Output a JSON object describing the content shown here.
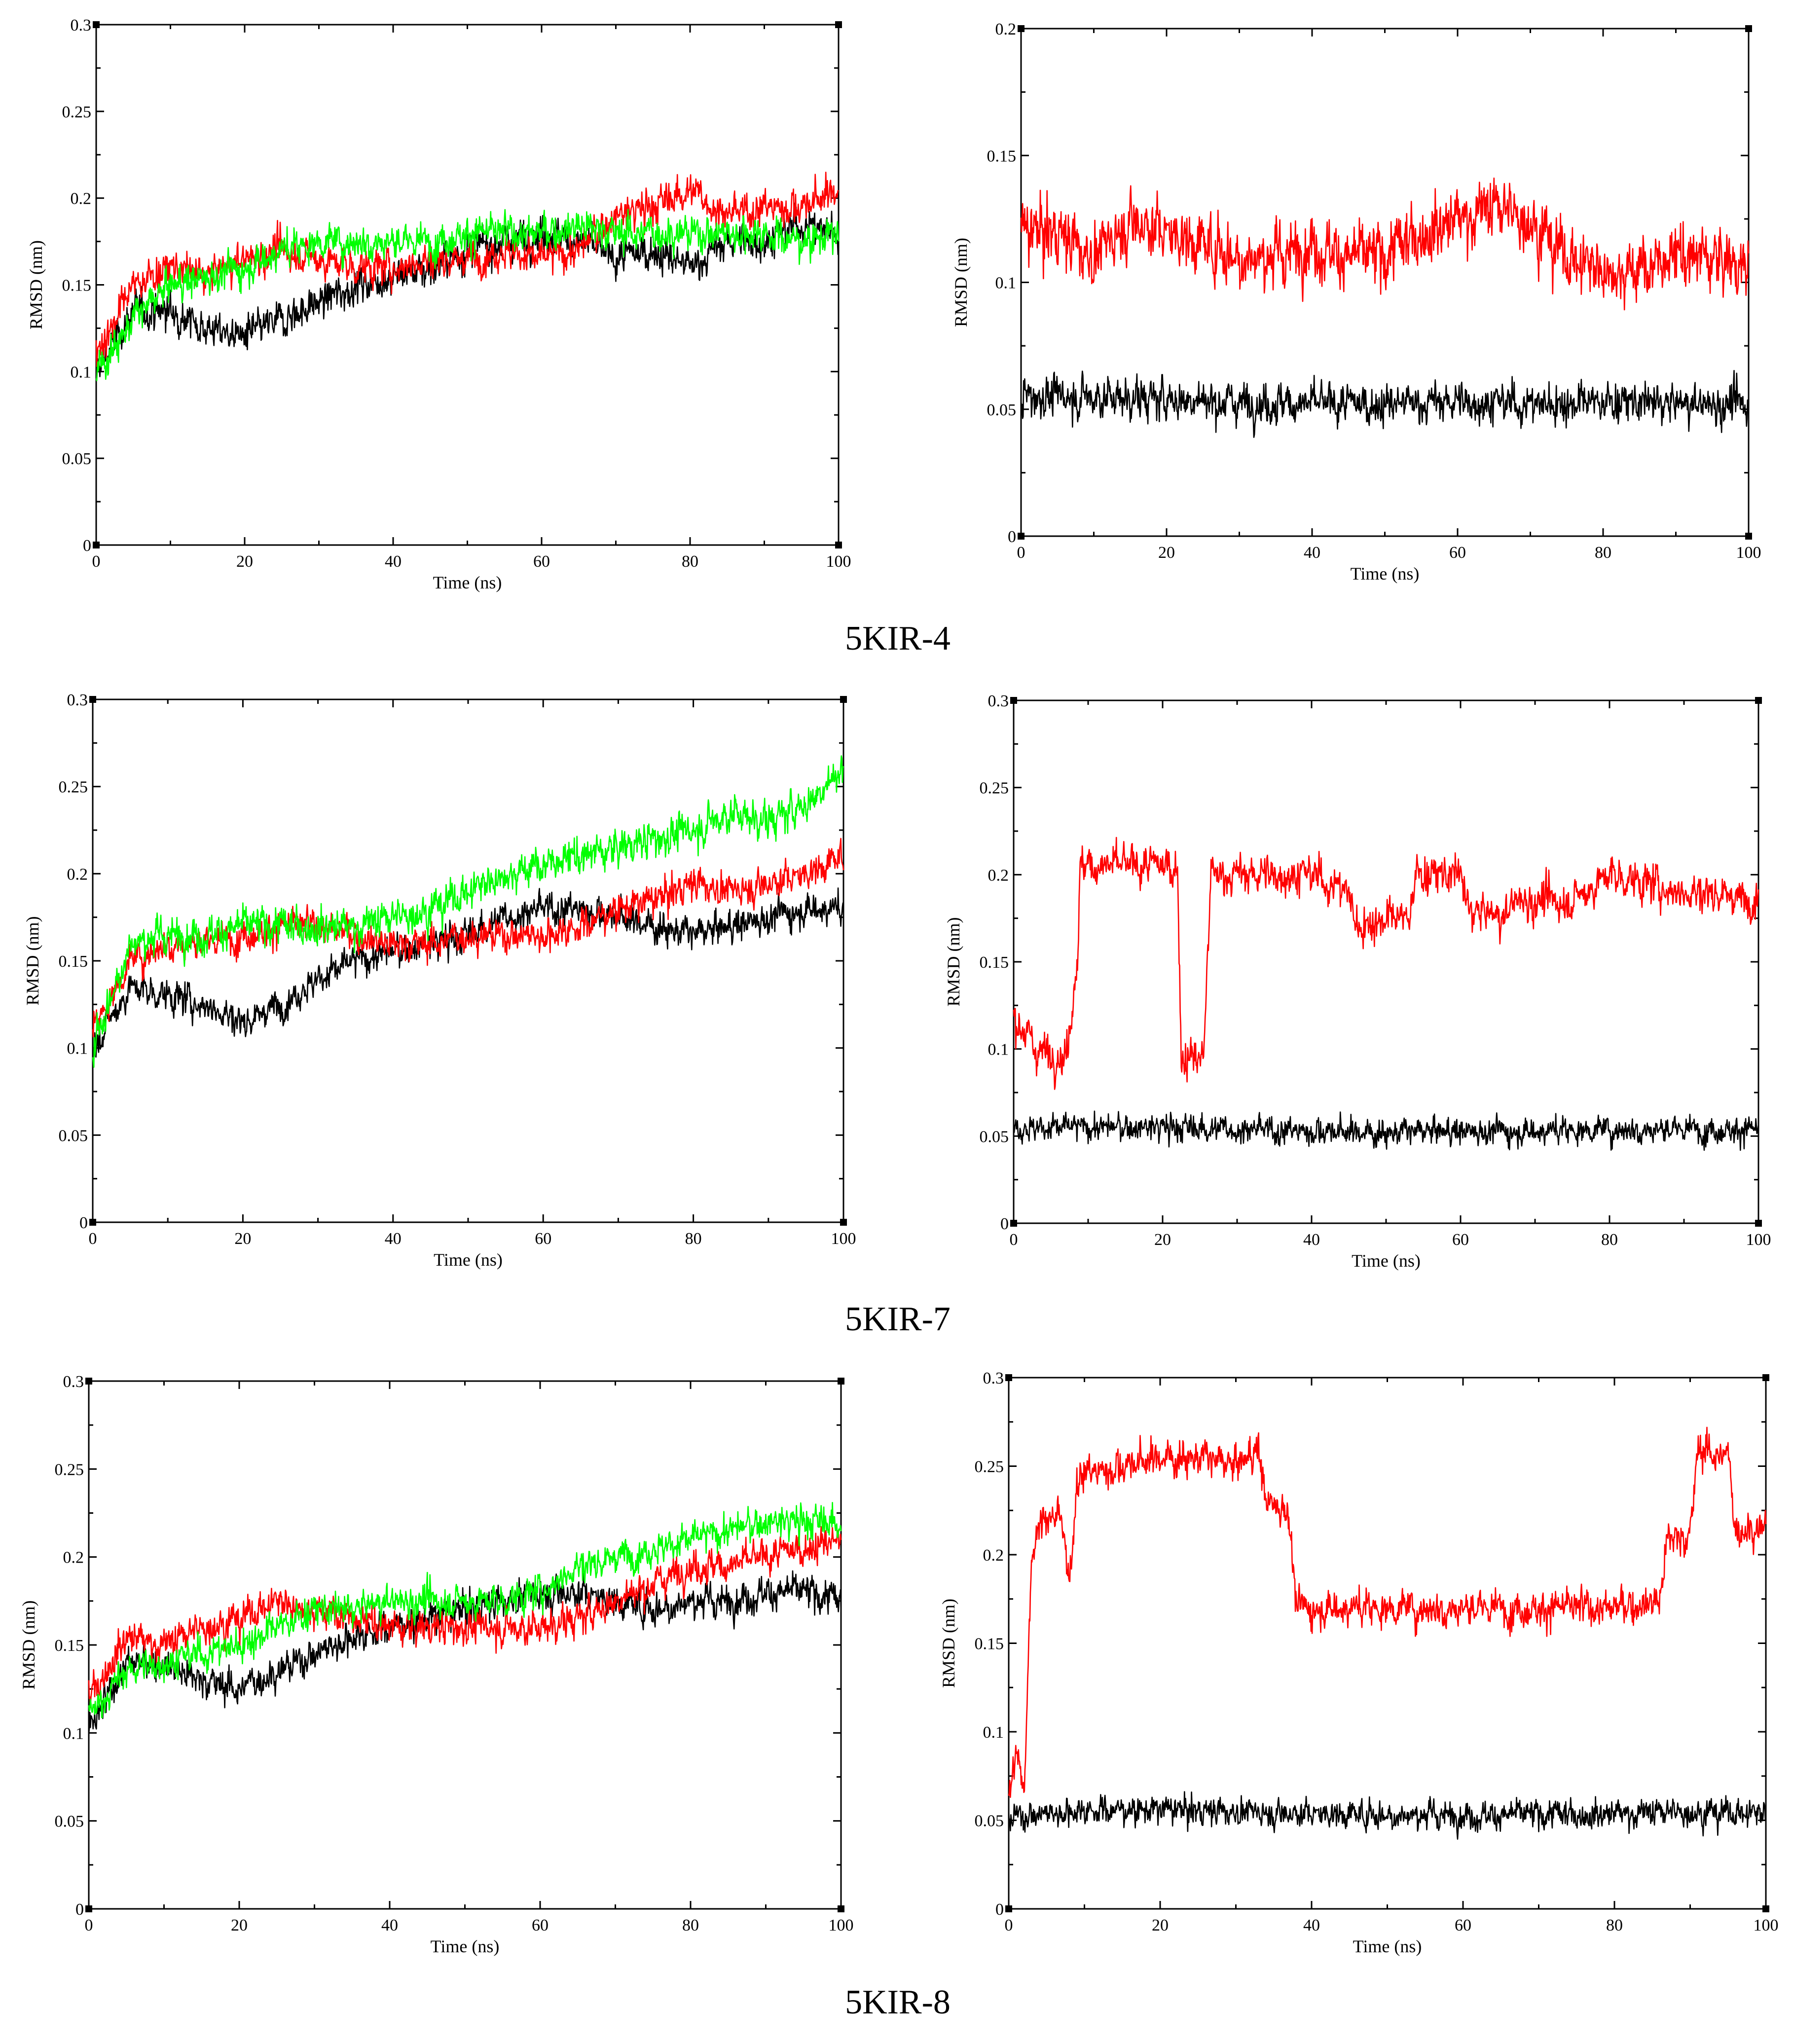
{
  "colors": {
    "black": "#000000",
    "red": "#ff0000",
    "green": "#00ff00"
  },
  "captions": [
    "5KIR-4",
    "5KIR-7",
    "5KIR-8"
  ],
  "chart_data": [
    {
      "type": "line",
      "group": "5KIR-4",
      "position": "left",
      "xlabel": "Time (ns)",
      "ylabel": "RMSD (nm)",
      "xlim": [
        0,
        100
      ],
      "ylim": [
        0,
        0.3
      ],
      "xticks": [
        0,
        20,
        40,
        60,
        80,
        100
      ],
      "yticks": [
        0,
        0.05,
        0.1,
        0.15,
        0.2,
        0.25,
        0.3
      ],
      "series": [
        {
          "name": "black",
          "color": "#000000",
          "x": [
            0,
            5,
            10,
            15,
            20,
            25,
            30,
            35,
            40,
            45,
            50,
            55,
            60,
            65,
            70,
            75,
            80,
            85,
            90,
            95,
            100
          ],
          "y": [
            0.1,
            0.135,
            0.135,
            0.125,
            0.12,
            0.13,
            0.14,
            0.15,
            0.155,
            0.16,
            0.17,
            0.175,
            0.18,
            0.175,
            0.165,
            0.17,
            0.16,
            0.175,
            0.175,
            0.185,
            0.18
          ],
          "noise": 0.012
        },
        {
          "name": "red",
          "color": "#ff0000",
          "x": [
            0,
            5,
            10,
            15,
            20,
            25,
            30,
            35,
            40,
            45,
            50,
            55,
            60,
            65,
            70,
            75,
            80,
            85,
            90,
            95,
            100
          ],
          "y": [
            0.11,
            0.15,
            0.16,
            0.155,
            0.165,
            0.17,
            0.165,
            0.16,
            0.16,
            0.165,
            0.165,
            0.17,
            0.165,
            0.17,
            0.19,
            0.195,
            0.205,
            0.19,
            0.195,
            0.195,
            0.205
          ],
          "noise": 0.012
        },
        {
          "name": "green",
          "color": "#00ff00",
          "x": [
            0,
            5,
            10,
            15,
            20,
            25,
            30,
            35,
            40,
            45,
            50,
            55,
            60,
            65,
            70,
            75,
            80,
            85,
            90,
            95,
            100
          ],
          "y": [
            0.1,
            0.13,
            0.15,
            0.155,
            0.16,
            0.17,
            0.175,
            0.175,
            0.175,
            0.175,
            0.18,
            0.18,
            0.18,
            0.185,
            0.18,
            0.18,
            0.18,
            0.18,
            0.18,
            0.175,
            0.18
          ],
          "noise": 0.012
        }
      ]
    },
    {
      "type": "line",
      "group": "5KIR-4",
      "position": "right",
      "xlabel": "Time (ns)",
      "ylabel": "RMSD (nm)",
      "xlim": [
        0,
        100
      ],
      "ylim": [
        0,
        0.2
      ],
      "xticks": [
        0,
        20,
        40,
        60,
        80,
        100
      ],
      "yticks": [
        0,
        0.05,
        0.1,
        0.15,
        0.2
      ],
      "series": [
        {
          "name": "red",
          "color": "#ff0000",
          "x": [
            0,
            5,
            10,
            15,
            20,
            25,
            30,
            35,
            40,
            45,
            50,
            55,
            60,
            65,
            70,
            75,
            80,
            85,
            90,
            95,
            100
          ],
          "y": [
            0.12,
            0.12,
            0.11,
            0.125,
            0.12,
            0.115,
            0.11,
            0.11,
            0.115,
            0.11,
            0.11,
            0.12,
            0.125,
            0.13,
            0.125,
            0.11,
            0.105,
            0.105,
            0.11,
            0.11,
            0.105
          ],
          "noise": 0.014
        },
        {
          "name": "black",
          "color": "#000000",
          "x": [
            0,
            10,
            20,
            30,
            40,
            50,
            60,
            70,
            80,
            90,
            100
          ],
          "y": [
            0.055,
            0.055,
            0.054,
            0.053,
            0.052,
            0.052,
            0.053,
            0.052,
            0.053,
            0.052,
            0.052
          ],
          "noise": 0.009
        }
      ]
    },
    {
      "type": "line",
      "group": "5KIR-7",
      "position": "left",
      "xlabel": "Time (ns)",
      "ylabel": "RMSD (nm)",
      "xlim": [
        0,
        100
      ],
      "ylim": [
        0,
        0.3
      ],
      "xticks": [
        0,
        20,
        40,
        60,
        80,
        100
      ],
      "yticks": [
        0,
        0.05,
        0.1,
        0.15,
        0.2,
        0.25,
        0.3
      ],
      "series": [
        {
          "name": "black",
          "color": "#000000",
          "x": [
            0,
            5,
            10,
            15,
            20,
            25,
            30,
            35,
            40,
            45,
            50,
            55,
            60,
            65,
            70,
            75,
            80,
            85,
            90,
            95,
            100
          ],
          "y": [
            0.1,
            0.135,
            0.13,
            0.125,
            0.115,
            0.125,
            0.14,
            0.15,
            0.155,
            0.16,
            0.165,
            0.175,
            0.18,
            0.18,
            0.175,
            0.17,
            0.165,
            0.17,
            0.175,
            0.18,
            0.18
          ],
          "noise": 0.011
        },
        {
          "name": "red",
          "color": "#ff0000",
          "x": [
            0,
            5,
            10,
            15,
            20,
            25,
            30,
            35,
            40,
            45,
            50,
            55,
            60,
            65,
            70,
            75,
            80,
            85,
            90,
            95,
            100
          ],
          "y": [
            0.11,
            0.15,
            0.16,
            0.16,
            0.165,
            0.17,
            0.17,
            0.165,
            0.16,
            0.16,
            0.165,
            0.165,
            0.165,
            0.17,
            0.18,
            0.185,
            0.195,
            0.19,
            0.195,
            0.2,
            0.21
          ],
          "noise": 0.011
        },
        {
          "name": "green",
          "color": "#00ff00",
          "x": [
            0,
            5,
            10,
            15,
            20,
            25,
            30,
            35,
            40,
            45,
            50,
            55,
            60,
            65,
            70,
            75,
            80,
            85,
            90,
            95,
            100
          ],
          "y": [
            0.1,
            0.16,
            0.165,
            0.165,
            0.17,
            0.17,
            0.17,
            0.17,
            0.175,
            0.18,
            0.19,
            0.2,
            0.205,
            0.21,
            0.215,
            0.22,
            0.225,
            0.235,
            0.23,
            0.24,
            0.26
          ],
          "noise": 0.012
        }
      ]
    },
    {
      "type": "line",
      "group": "5KIR-7",
      "position": "right",
      "xlabel": "Time (ns)",
      "ylabel": "RMSD (nm)",
      "xlim": [
        0,
        100
      ],
      "ylim": [
        0,
        0.3
      ],
      "xticks": [
        0,
        20,
        40,
        60,
        80,
        100
      ],
      "yticks": [
        0,
        0.05,
        0.1,
        0.15,
        0.2,
        0.25,
        0.3
      ],
      "series": [
        {
          "name": "red",
          "color": "#ff0000",
          "x": [
            0,
            3,
            7,
            8.5,
            9,
            15,
            22,
            22.5,
            25.5,
            26.5,
            30,
            35,
            40,
            45,
            46,
            50,
            53,
            54,
            60,
            61,
            66,
            67,
            75,
            80,
            90,
            95,
            98,
            100
          ],
          "y": [
            0.12,
            0.1,
            0.095,
            0.15,
            0.205,
            0.205,
            0.205,
            0.095,
            0.095,
            0.2,
            0.2,
            0.2,
            0.2,
            0.19,
            0.17,
            0.175,
            0.175,
            0.2,
            0.2,
            0.18,
            0.175,
            0.185,
            0.185,
            0.2,
            0.19,
            0.19,
            0.185,
            0.19
          ],
          "noise": 0.013
        },
        {
          "name": "black",
          "color": "#000000",
          "x": [
            0,
            10,
            20,
            30,
            40,
            50,
            60,
            70,
            80,
            90,
            100
          ],
          "y": [
            0.055,
            0.055,
            0.055,
            0.054,
            0.053,
            0.052,
            0.053,
            0.053,
            0.054,
            0.054,
            0.054
          ],
          "noise": 0.009
        }
      ]
    },
    {
      "type": "line",
      "group": "5KIR-8",
      "position": "left",
      "xlabel": "Time (ns)",
      "ylabel": "RMSD (nm)",
      "xlim": [
        0,
        100
      ],
      "ylim": [
        0,
        0.3
      ],
      "xticks": [
        0,
        20,
        40,
        60,
        80,
        100
      ],
      "yticks": [
        0,
        0.05,
        0.1,
        0.15,
        0.2,
        0.25,
        0.3
      ],
      "series": [
        {
          "name": "black",
          "color": "#000000",
          "x": [
            0,
            5,
            10,
            15,
            20,
            25,
            30,
            35,
            40,
            45,
            50,
            55,
            60,
            65,
            70,
            75,
            80,
            85,
            90,
            95,
            100
          ],
          "y": [
            0.1,
            0.14,
            0.14,
            0.13,
            0.125,
            0.135,
            0.145,
            0.155,
            0.16,
            0.165,
            0.17,
            0.175,
            0.18,
            0.18,
            0.175,
            0.17,
            0.175,
            0.175,
            0.18,
            0.18,
            0.175
          ],
          "noise": 0.011
        },
        {
          "name": "red",
          "color": "#ff0000",
          "x": [
            0,
            5,
            10,
            15,
            20,
            25,
            30,
            35,
            40,
            45,
            50,
            55,
            60,
            65,
            70,
            75,
            80,
            85,
            90,
            95,
            100
          ],
          "y": [
            0.12,
            0.155,
            0.15,
            0.16,
            0.165,
            0.175,
            0.17,
            0.165,
            0.16,
            0.16,
            0.16,
            0.16,
            0.16,
            0.165,
            0.175,
            0.185,
            0.195,
            0.195,
            0.2,
            0.205,
            0.21
          ],
          "noise": 0.011
        },
        {
          "name": "green",
          "color": "#00ff00",
          "x": [
            0,
            5,
            10,
            15,
            20,
            25,
            30,
            35,
            40,
            45,
            50,
            55,
            60,
            65,
            70,
            75,
            80,
            85,
            90,
            95,
            100
          ],
          "y": [
            0.11,
            0.135,
            0.14,
            0.145,
            0.15,
            0.16,
            0.17,
            0.17,
            0.175,
            0.175,
            0.175,
            0.175,
            0.18,
            0.195,
            0.2,
            0.205,
            0.21,
            0.215,
            0.22,
            0.22,
            0.22
          ],
          "noise": 0.011
        }
      ]
    },
    {
      "type": "line",
      "group": "5KIR-8",
      "position": "right",
      "xlabel": "Time (ns)",
      "ylabel": "RMSD (nm)",
      "xlim": [
        0,
        100
      ],
      "ylim": [
        0,
        0.3
      ],
      "xticks": [
        0,
        20,
        40,
        60,
        80,
        100
      ],
      "yticks": [
        0,
        0.05,
        0.1,
        0.15,
        0.2,
        0.25,
        0.3
      ],
      "series": [
        {
          "name": "red",
          "color": "#ff0000",
          "x": [
            0,
            1,
            2,
            3,
            4,
            7,
            8,
            9,
            15,
            20,
            25,
            30,
            33,
            34,
            37,
            38,
            40,
            50,
            60,
            70,
            80,
            86,
            87,
            90,
            91,
            95,
            96,
            100
          ],
          "y": [
            0.06,
            0.09,
            0.06,
            0.2,
            0.22,
            0.22,
            0.18,
            0.245,
            0.25,
            0.255,
            0.255,
            0.25,
            0.26,
            0.23,
            0.225,
            0.17,
            0.17,
            0.17,
            0.17,
            0.17,
            0.17,
            0.175,
            0.21,
            0.21,
            0.26,
            0.255,
            0.215,
            0.215
          ],
          "noise": 0.012
        },
        {
          "name": "black",
          "color": "#000000",
          "x": [
            0,
            10,
            20,
            30,
            40,
            50,
            60,
            70,
            80,
            90,
            100
          ],
          "y": [
            0.052,
            0.056,
            0.056,
            0.055,
            0.054,
            0.053,
            0.053,
            0.053,
            0.054,
            0.055,
            0.054
          ],
          "noise": 0.009
        }
      ]
    }
  ]
}
